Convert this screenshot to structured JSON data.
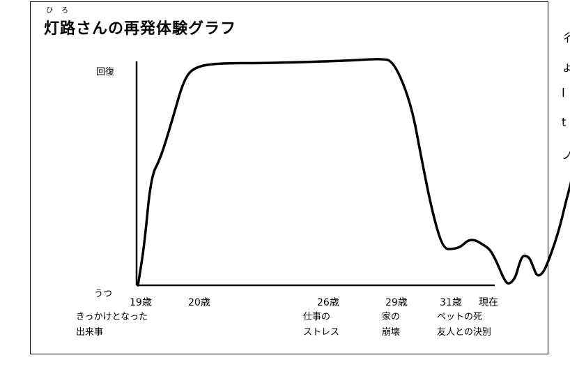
{
  "title": {
    "ruby": "ひろ",
    "text": "灯路さんの再発体験グラフ"
  },
  "side_text": [
    "彳",
    "ょ",
    "l",
    "t",
    "ノ"
  ],
  "chart_data": {
    "type": "line",
    "title": "灯路さんの再発体験グラフ",
    "ylabel_top": "回復",
    "ylabel_bottom": "うつ",
    "y_scale": "qualitative: うつ (0) to 回復 (100)",
    "ylim": [
      0,
      100
    ],
    "x_ticks": [
      "19歳",
      "20歳",
      "26歳",
      "29歳",
      "31歳",
      "現在"
    ],
    "events": [
      {
        "x": "19歳",
        "label": "きっかけとなった\n出来事"
      },
      {
        "x": "26歳",
        "label": "仕事の\nストレス"
      },
      {
        "x": "29歳",
        "label": "家の\n崩壊"
      },
      {
        "x": "31歳",
        "label": "ペットの死\n友人との決別"
      }
    ],
    "series": [
      {
        "points": [
          [
            0.0,
            0
          ],
          [
            0.1,
            18
          ],
          [
            0.2,
            48
          ],
          [
            0.35,
            56
          ],
          [
            0.55,
            75
          ],
          [
            0.7,
            90
          ],
          [
            0.85,
            96
          ],
          [
            1.1,
            98
          ],
          [
            1.5,
            98
          ],
          [
            2.2,
            99
          ],
          [
            2.7,
            100
          ],
          [
            2.9,
            99
          ],
          [
            3.2,
            80
          ],
          [
            3.4,
            55
          ],
          [
            3.6,
            32
          ],
          [
            3.8,
            16
          ],
          [
            4.0,
            16
          ],
          [
            4.2,
            17
          ],
          [
            4.4,
            20
          ],
          [
            4.6,
            20
          ],
          [
            4.8,
            18
          ],
          [
            5.0,
            16
          ],
          [
            5.2,
            10
          ],
          [
            5.35,
            4
          ],
          [
            5.5,
            0
          ],
          [
            5.7,
            3
          ],
          [
            5.8,
            9
          ],
          [
            5.9,
            13
          ],
          [
            6.0,
            13
          ],
          [
            6.1,
            12
          ],
          [
            6.2,
            8
          ],
          [
            6.3,
            4
          ],
          [
            6.45,
            5
          ],
          [
            6.6,
            10
          ],
          [
            6.8,
            19
          ],
          [
            6.95,
            27
          ],
          [
            7.1,
            37
          ],
          [
            7.25,
            46
          ]
        ]
      }
    ]
  }
}
